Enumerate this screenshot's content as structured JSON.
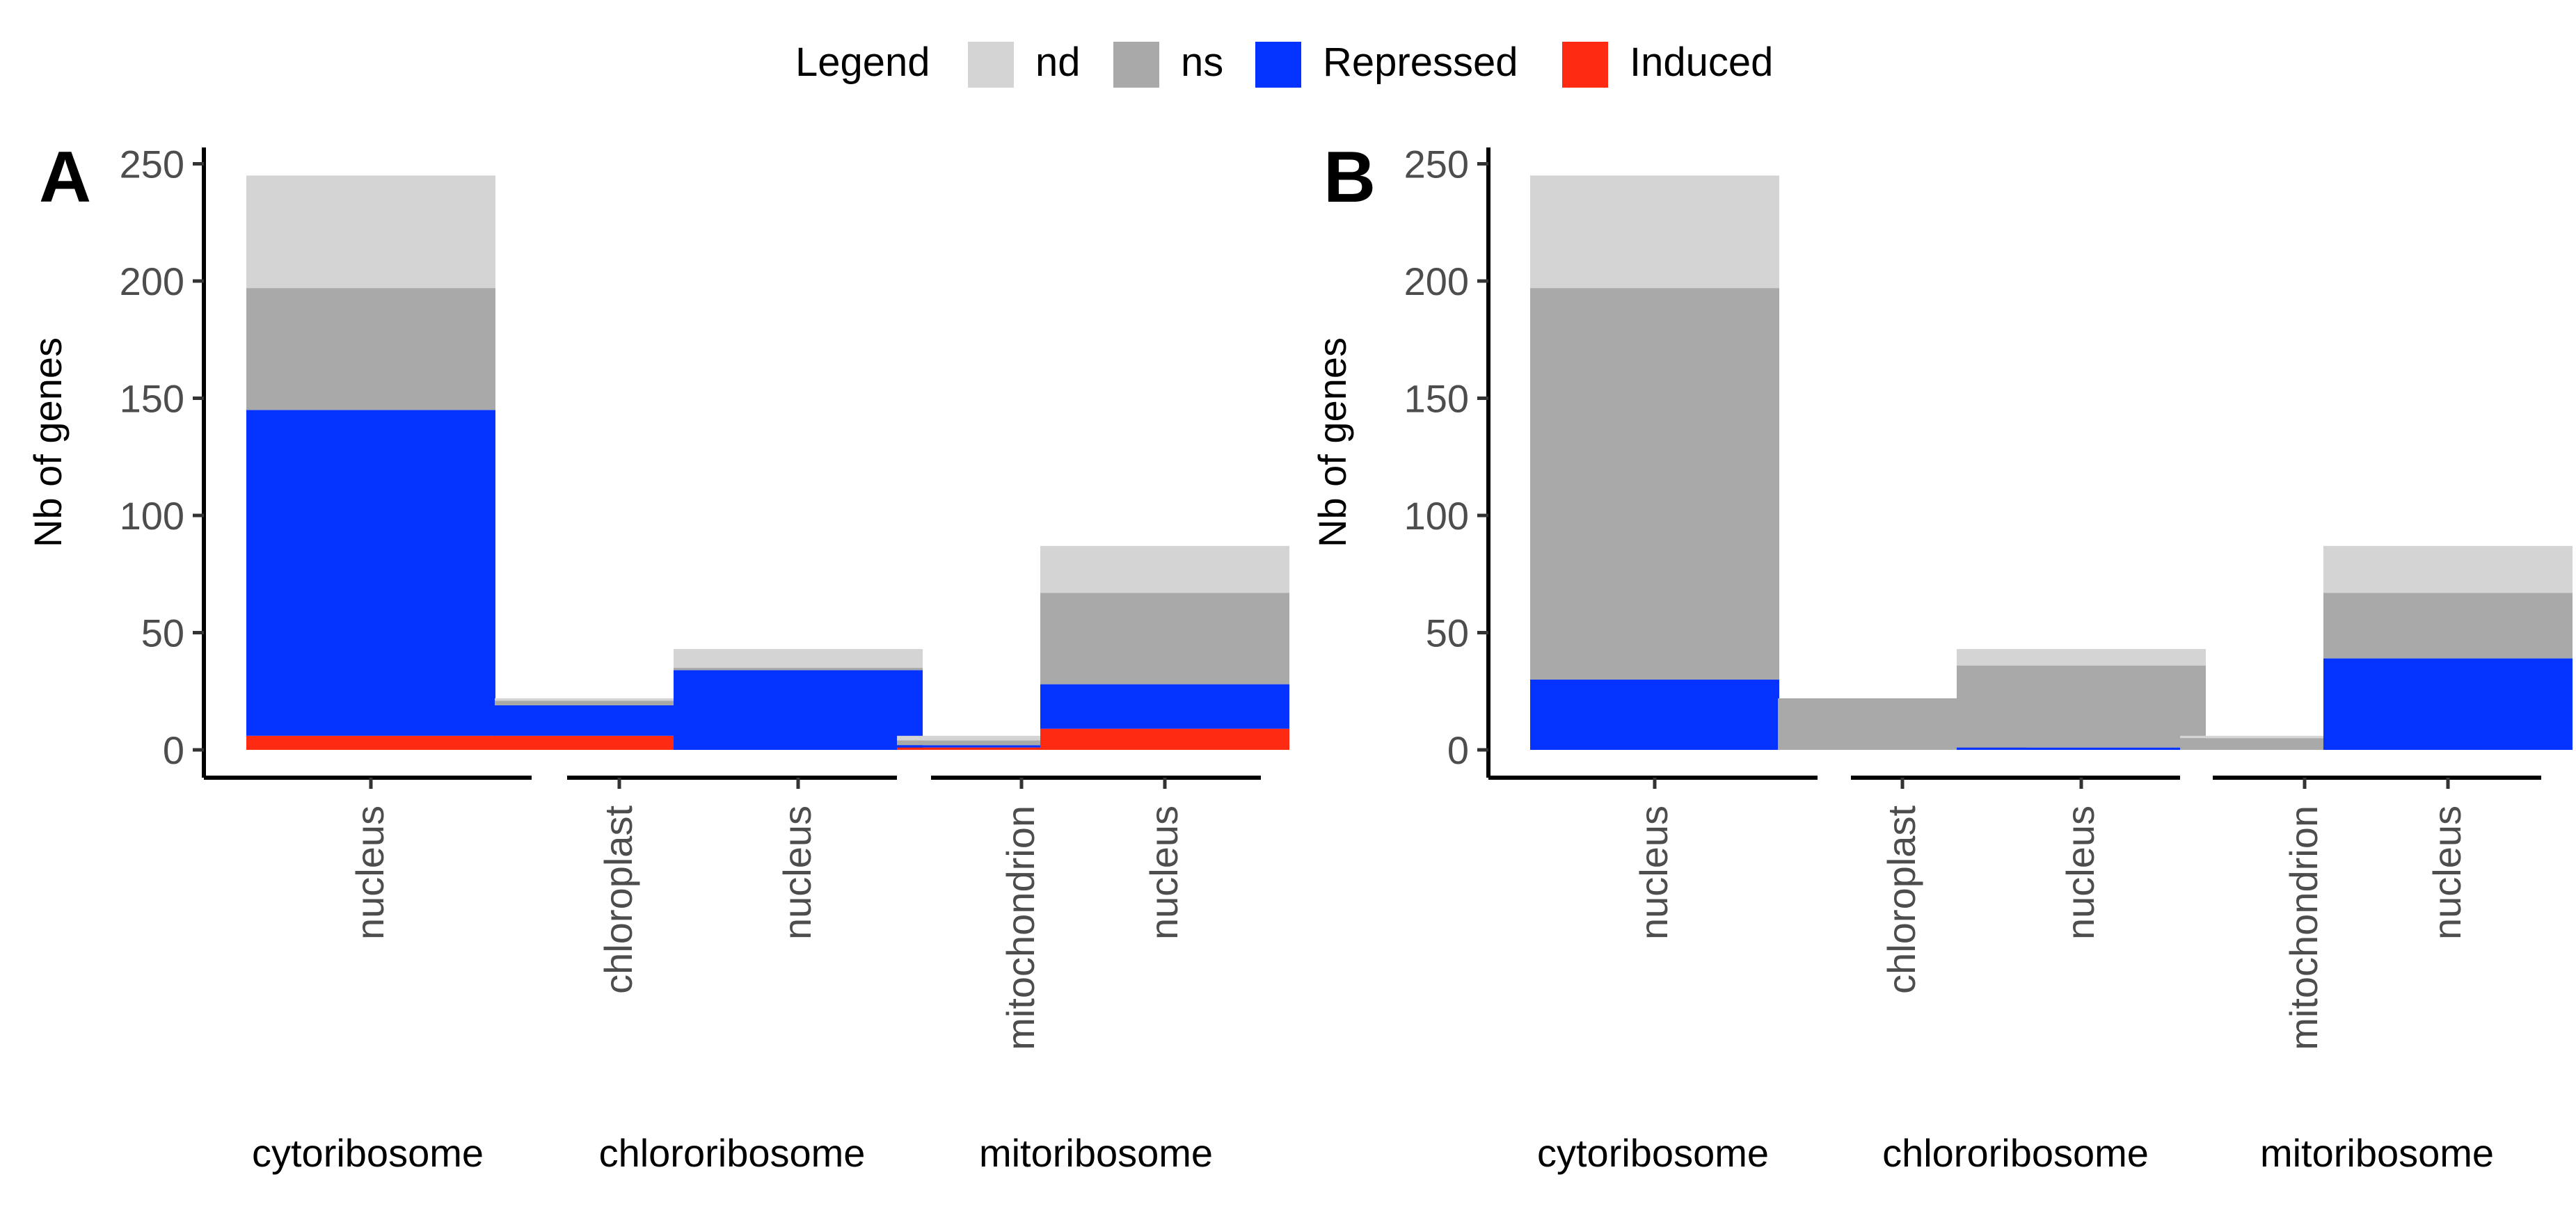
{
  "legend": {
    "title": "Legend",
    "items": [
      {
        "key": "nd",
        "label": "nd",
        "color": "#d4d4d4"
      },
      {
        "key": "ns",
        "label": "ns",
        "color": "#a9a9a9"
      },
      {
        "key": "repressed",
        "label": "Repressed",
        "color": "#0433ff"
      },
      {
        "key": "induced",
        "label": "Induced",
        "color": "#ff2a12"
      }
    ]
  },
  "chart_data": [
    {
      "type": "bar",
      "stacked": true,
      "panel_label": "A",
      "ylabel": "Nb of genes",
      "ylim": [
        0,
        260
      ],
      "yticks": [
        0,
        50,
        100,
        150,
        200,
        250
      ],
      "groups": [
        {
          "name": "cytoribosome",
          "bars": [
            {
              "category": "nucleus",
              "induced": 6,
              "repressed": 139,
              "ns": 52,
              "nd": 48
            }
          ]
        },
        {
          "name": "chlororibosome",
          "bars": [
            {
              "category": "chloroplast",
              "induced": 6,
              "repressed": 13,
              "ns": 2,
              "nd": 1
            },
            {
              "category": "nucleus",
              "induced": 0,
              "repressed": 34,
              "ns": 1,
              "nd": 8
            }
          ]
        },
        {
          "name": "mitoribosome",
          "bars": [
            {
              "category": "mitochondrion",
              "induced": 1,
              "repressed": 1,
              "ns": 2,
              "nd": 2
            },
            {
              "category": "nucleus",
              "induced": 9,
              "repressed": 19,
              "ns": 39,
              "nd": 20
            }
          ]
        }
      ]
    },
    {
      "type": "bar",
      "stacked": true,
      "panel_label": "B",
      "ylabel": "Nb of genes",
      "ylim": [
        0,
        260
      ],
      "yticks": [
        0,
        50,
        100,
        150,
        200,
        250
      ],
      "groups": [
        {
          "name": "cytoribosome",
          "bars": [
            {
              "category": "nucleus",
              "induced": 0,
              "repressed": 30,
              "ns": 167,
              "nd": 48
            }
          ]
        },
        {
          "name": "chlororibosome",
          "bars": [
            {
              "category": "chloroplast",
              "induced": 0,
              "repressed": 0,
              "ns": 22,
              "nd": 0
            },
            {
              "category": "nucleus",
              "induced": 0,
              "repressed": 1,
              "ns": 35,
              "nd": 7
            }
          ]
        },
        {
          "name": "mitoribosome",
          "bars": [
            {
              "category": "mitochondrion",
              "induced": 0,
              "repressed": 0,
              "ns": 5,
              "nd": 1
            },
            {
              "category": "nucleus",
              "induced": 0,
              "repressed": 39,
              "ns": 28,
              "nd": 20
            }
          ]
        }
      ]
    }
  ]
}
